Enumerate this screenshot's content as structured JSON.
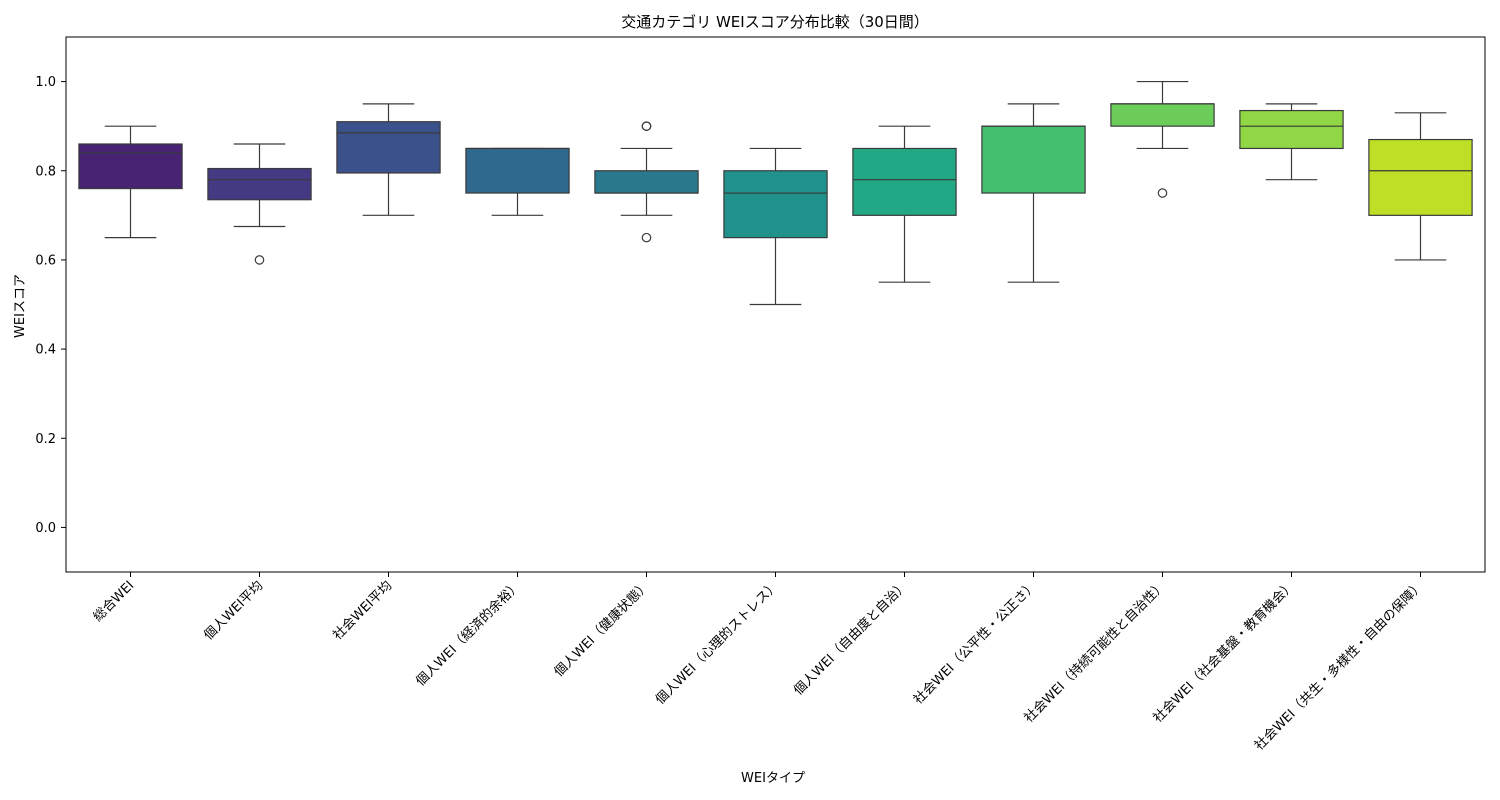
{
  "chart_data": {
    "type": "box",
    "title": "交通カテゴリ WEIスコア分布比較（30日間）",
    "xlabel": "WEIタイプ",
    "ylabel": "WEIスコア",
    "ylim": [
      -0.1,
      1.1
    ],
    "yticks": [
      "0.0",
      "0.2",
      "0.4",
      "0.6",
      "0.8",
      "1.0"
    ],
    "grid": false,
    "legend": "none",
    "categories": [
      "総合WEI",
      "個人WEI平均",
      "社会WEI平均",
      "個人WEI（経済的余裕）",
      "個人WEI（健康状態）",
      "個人WEI（心理的ストレス）",
      "個人WEI（自由度と自治）",
      "社会WEI（公平性・公正さ）",
      "社会WEI（持続可能性と自治性）",
      "社会WEI（社会基盤・教育機会）",
      "社会WEI（共生・多様性・自由の保障）"
    ],
    "colors": [
      "#482374",
      "#443983",
      "#3b518b",
      "#31688e",
      "#2a788e",
      "#21918c",
      "#22a884",
      "#44bf70",
      "#6ccd5a",
      "#8fd744",
      "#bddf26"
    ],
    "boxes": [
      {
        "whisker_low": 0.65,
        "q1": 0.76,
        "median": 0.84,
        "q3": 0.86,
        "whisker_high": 0.9,
        "outliers": []
      },
      {
        "whisker_low": 0.675,
        "q1": 0.735,
        "median": 0.78,
        "q3": 0.805,
        "whisker_high": 0.86,
        "outliers": [
          0.6
        ]
      },
      {
        "whisker_low": 0.7,
        "q1": 0.795,
        "median": 0.885,
        "q3": 0.91,
        "whisker_high": 0.95,
        "outliers": []
      },
      {
        "whisker_low": 0.7,
        "q1": 0.75,
        "median": 0.85,
        "q3": 0.85,
        "whisker_high": 0.85,
        "outliers": []
      },
      {
        "whisker_low": 0.7,
        "q1": 0.75,
        "median": 0.75,
        "q3": 0.8,
        "whisker_high": 0.85,
        "outliers": [
          0.65,
          0.9,
          0.9
        ]
      },
      {
        "whisker_low": 0.5,
        "q1": 0.65,
        "median": 0.75,
        "q3": 0.8,
        "whisker_high": 0.85,
        "outliers": []
      },
      {
        "whisker_low": 0.55,
        "q1": 0.7,
        "median": 0.78,
        "q3": 0.85,
        "whisker_high": 0.9,
        "outliers": []
      },
      {
        "whisker_low": 0.55,
        "q1": 0.75,
        "median": 0.9,
        "q3": 0.9,
        "whisker_high": 0.95,
        "outliers": []
      },
      {
        "whisker_low": 0.85,
        "q1": 0.9,
        "median": 0.95,
        "q3": 0.95,
        "whisker_high": 1.0,
        "outliers": [
          0.75
        ]
      },
      {
        "whisker_low": 0.78,
        "q1": 0.85,
        "median": 0.9,
        "q3": 0.935,
        "whisker_high": 0.95,
        "outliers": []
      },
      {
        "whisker_low": 0.6,
        "q1": 0.7,
        "median": 0.8,
        "q3": 0.87,
        "whisker_high": 0.93,
        "outliers": []
      }
    ]
  }
}
